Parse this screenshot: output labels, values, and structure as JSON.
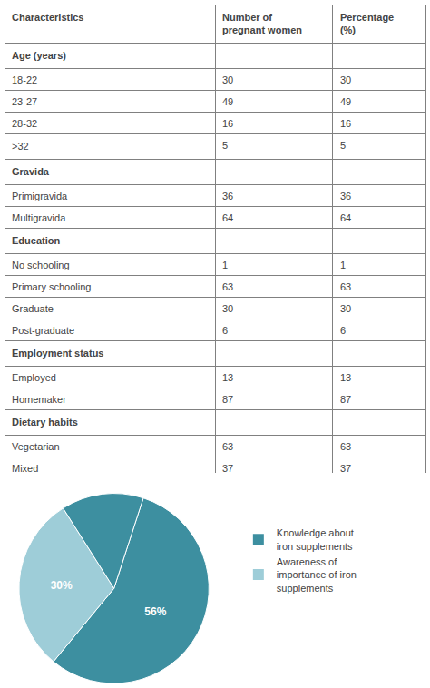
{
  "chart_data": [
    {
      "type": "table",
      "header": [
        "Characteristics",
        "Number of\npregnant women",
        "Percentage\n(%)"
      ],
      "sections": [
        {
          "name": "Age (years)",
          "rows": [
            [
              "18-22",
              "30",
              "30"
            ],
            [
              "23-27",
              "49",
              "49"
            ],
            [
              "28-32",
              "16",
              "16"
            ],
            [
              ">32",
              "5",
              "5"
            ]
          ]
        },
        {
          "name": "Gravida",
          "rows": [
            [
              "Primigravida",
              "36",
              "36"
            ],
            [
              "Multigravida",
              "64",
              "64"
            ]
          ]
        },
        {
          "name": "Education",
          "rows": [
            [
              "No schooling",
              "1",
              "1"
            ],
            [
              "Primary schooling",
              "63",
              "63"
            ],
            [
              "Graduate",
              "30",
              "30"
            ],
            [
              "Post-graduate",
              "6",
              "6"
            ]
          ]
        },
        {
          "name": "Employment status",
          "rows": [
            [
              "Employed",
              "13",
              "13"
            ],
            [
              "Homemaker",
              "87",
              "87"
            ]
          ]
        },
        {
          "name": "Dietary habits",
          "rows": [
            [
              "Vegetarian",
              "63",
              "63"
            ],
            [
              "Mixed",
              "37",
              "37"
            ]
          ]
        }
      ]
    },
    {
      "type": "pie",
      "values": [
        56,
        30,
        14
      ],
      "value_labels": [
        "56%",
        "30%",
        null
      ],
      "colors": [
        "#3d8fa0",
        "#9ecdd8",
        "#3d8fa0"
      ],
      "series": [
        {
          "name": "Knowledge about\niron supplements",
          "color": "#3d8fa0"
        },
        {
          "name": "Awareness of\nimportance of iron\nsupplements",
          "color": "#9ecdd8"
        }
      ]
    }
  ]
}
